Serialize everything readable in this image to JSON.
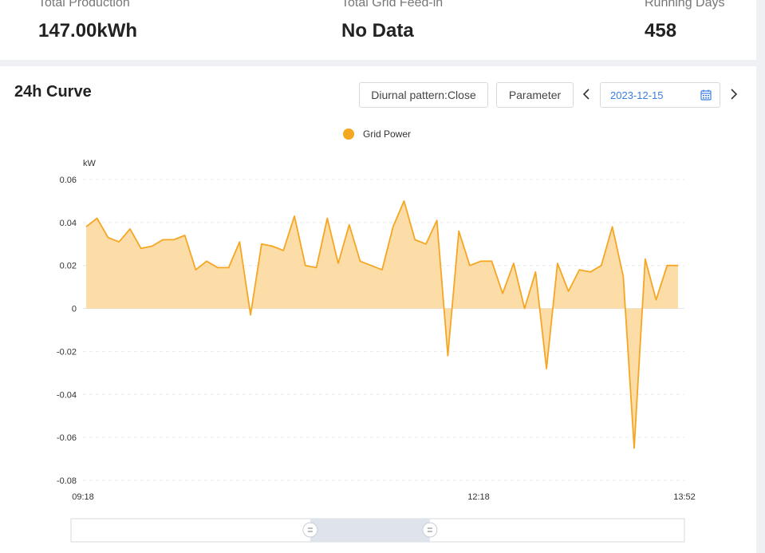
{
  "stats": [
    {
      "label": "Total Production",
      "value": "147.00kWh"
    },
    {
      "label": "Total Grid Feed-in",
      "value": "No Data"
    },
    {
      "label": "Running Days",
      "value": "458"
    }
  ],
  "curve": {
    "title": "24h Curve",
    "diurnal_button": "Diurnal pattern:Close",
    "parameter_button": "Parameter",
    "prev_icon": "chevron-left-icon",
    "next_icon": "chevron-right-icon",
    "date": "2023-12-15",
    "calendar_icon": "calendar-icon"
  },
  "chart_data": {
    "type": "area",
    "series": [
      {
        "name": "Grid Power",
        "color": "#f5a623",
        "values": [
          0.038,
          0.042,
          0.033,
          0.031,
          0.037,
          0.028,
          0.029,
          0.032,
          0.032,
          0.034,
          0.018,
          0.022,
          0.019,
          0.019,
          0.031,
          -0.003,
          0.03,
          0.029,
          0.027,
          0.043,
          0.02,
          0.019,
          0.042,
          0.021,
          0.039,
          0.022,
          0.02,
          0.018,
          0.038,
          0.05,
          0.032,
          0.03,
          0.041,
          -0.022,
          0.036,
          0.02,
          0.022,
          0.022,
          0.007,
          0.021,
          0.0,
          0.017,
          -0.028,
          0.021,
          0.008,
          0.018,
          0.017,
          0.02,
          0.038,
          0.015,
          -0.065,
          0.023,
          0.004,
          0.02,
          0.02
        ]
      }
    ],
    "x_labels": [
      "09:18",
      "12:18",
      "13:52"
    ],
    "y_unit": "kW",
    "y_ticks": [
      "0.06",
      "0.04",
      "0.02",
      "0",
      "-0.02",
      "-0.04",
      "-0.06",
      "-0.08"
    ],
    "y_values": [
      0.06,
      0.04,
      0.02,
      0,
      -0.02,
      -0.04,
      -0.06,
      -0.08
    ],
    "ylim": [
      -0.08,
      0.06
    ],
    "grid": true,
    "legend": "top-center",
    "zoom_range": [
      0.39,
      0.585
    ]
  }
}
